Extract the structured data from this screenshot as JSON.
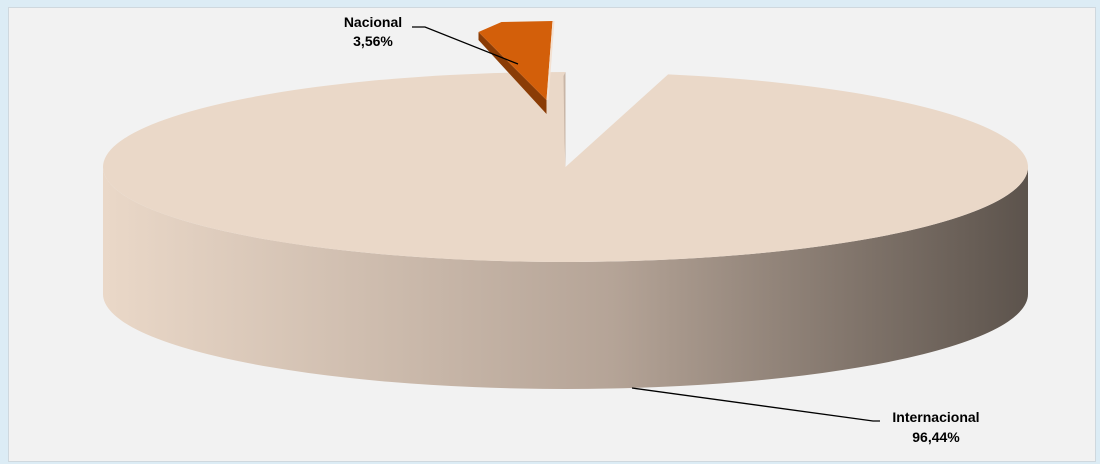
{
  "chart_data": {
    "type": "pie",
    "three_d": true,
    "exploded_slice": "Nacional",
    "slices": [
      {
        "name": "Nacional",
        "label": "Nacional",
        "value_label": "3,56%",
        "value": 3.56,
        "color": "#d35f0a"
      },
      {
        "name": "Internacional",
        "label": "Internacional",
        "value_label": "96,44%",
        "value": 96.44,
        "color": "#ead8c8",
        "side_gradient": [
          "#ead8c8",
          "#b5a497",
          "#5c534c"
        ]
      }
    ],
    "legend": "none"
  }
}
